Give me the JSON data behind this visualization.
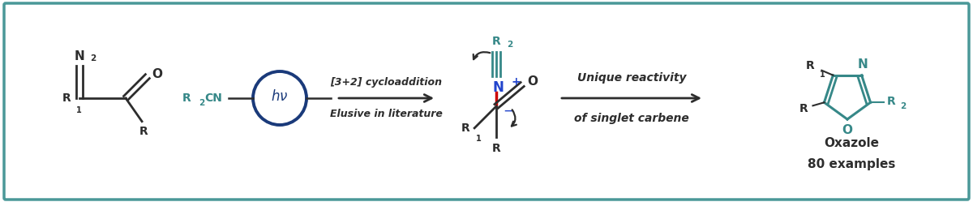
{
  "bg_color": "#ffffff",
  "border_color": "#4a9898",
  "dark_color": "#2d2d2d",
  "teal_color": "#368888",
  "blue_circle_color": "#1a3a7a",
  "red_color": "#cc0000",
  "blue_color": "#2244cc",
  "figsize": [
    12.0,
    2.49
  ],
  "dpi": 100,
  "xlim": [
    0,
    12
  ],
  "ylim": [
    0,
    2.49
  ]
}
